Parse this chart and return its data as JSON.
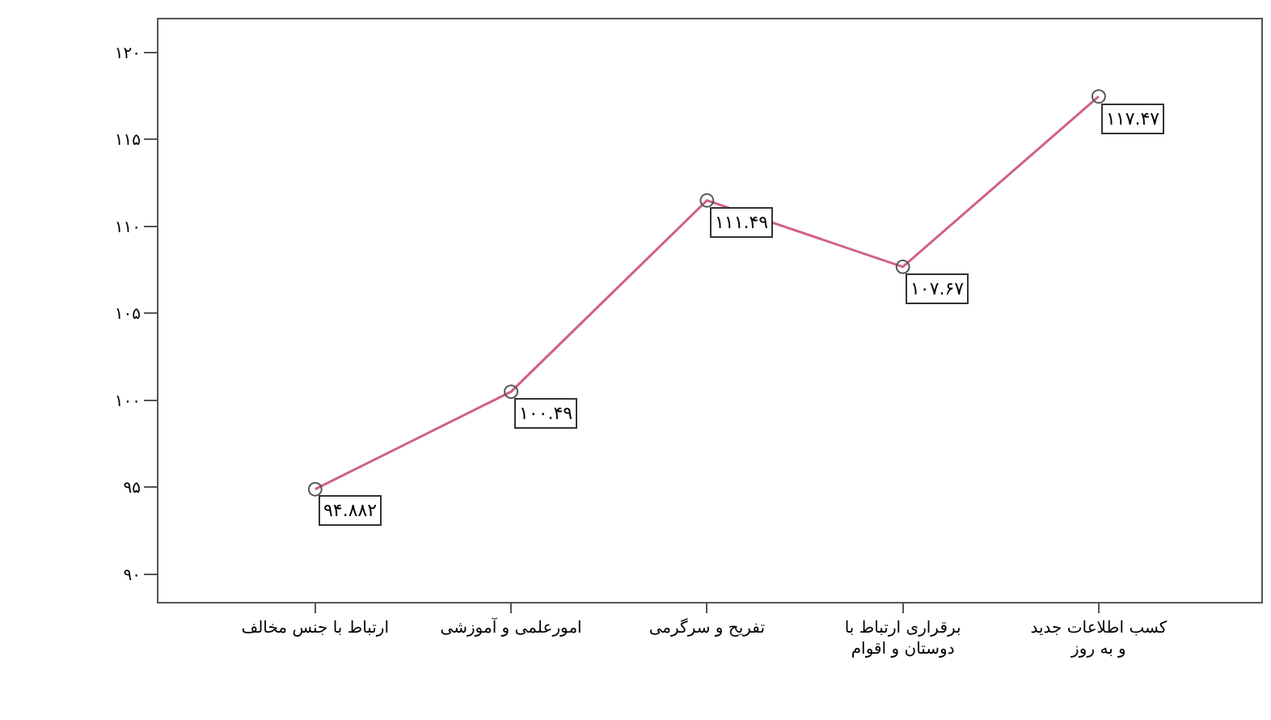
{
  "chart_data": {
    "type": "line",
    "categories": [
      "ارتباط با جنس مخالف",
      "امورعلمی و آموزشی",
      "تفریح و سرگرمی",
      "برقراری ارتباط با\nدوستان و اقوام",
      "کسب اطلاعات جدید\nو به روز"
    ],
    "series": [
      {
        "color": "#d0608a",
        "values": [
          94.882,
          100.49,
          111.49,
          107.67,
          117.47
        ],
        "value_labels": [
          "۹۴.۸۸۲",
          "۱۰۰.۴۹",
          "۱۱۱.۴۹",
          "۱۰۷.۶۷",
          "۱۱۷.۴۷"
        ]
      }
    ],
    "ylim": [
      88.4,
      121.9
    ],
    "yticks": [
      {
        "value": 90,
        "label": "۹۰"
      },
      {
        "value": 95,
        "label": "۹۵"
      },
      {
        "value": 100,
        "label": "۱۰۰"
      },
      {
        "value": 105,
        "label": "۱۰۵"
      },
      {
        "value": 110,
        "label": "۱۱۰"
      },
      {
        "value": 115,
        "label": "۱۱۵"
      },
      {
        "value": 120,
        "label": "۱۲۰"
      }
    ],
    "marker": "circle",
    "line_style": "solid",
    "legend": false
  }
}
